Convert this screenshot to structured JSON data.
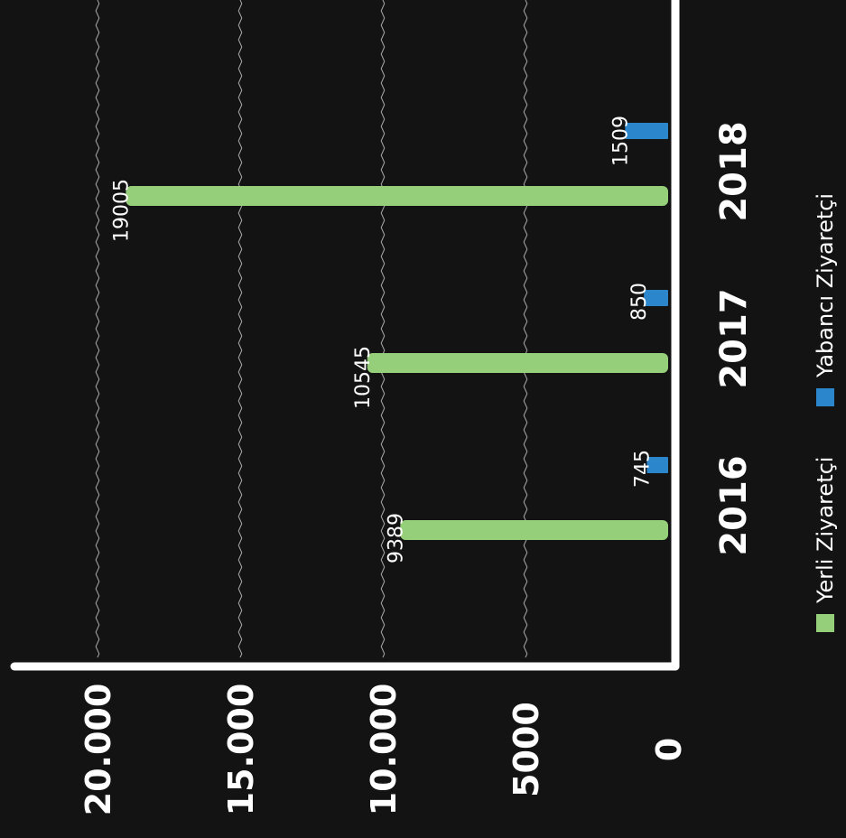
{
  "chart_data": {
    "type": "bar",
    "orientation": "vertical",
    "title": "",
    "xlabel": "",
    "ylabel": "",
    "categories": [
      "2016",
      "2017",
      "2018"
    ],
    "series": [
      {
        "name": "Yerli Ziyaretçi",
        "values": [
          9389,
          10545,
          19005
        ],
        "color": "#95cf7a"
      },
      {
        "name": "Yabancı Ziyaretçi",
        "values": [
          745,
          850,
          1509
        ],
        "color": "#2c86cc"
      }
    ],
    "ylim": [
      0,
      20000
    ],
    "yticks": [
      0,
      5000,
      10000,
      15000,
      20000
    ],
    "ytick_labels": [
      "0",
      "5000",
      "10.000",
      "15.000",
      "20.000"
    ],
    "data_labels": true,
    "grid": true,
    "legend_position": "bottom",
    "colors": {
      "background": "#131314",
      "axis": "#ffffff",
      "text": "#ffffff",
      "grid": "#d9d9d9"
    }
  }
}
